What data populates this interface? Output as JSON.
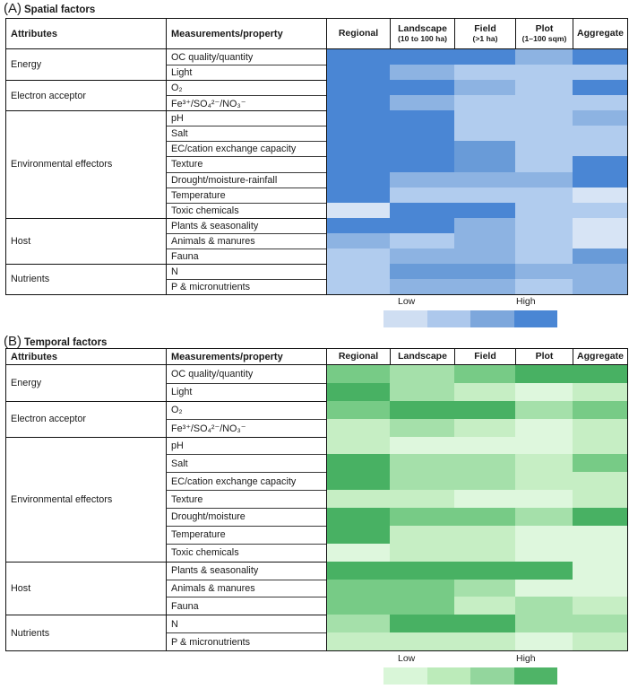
{
  "chart_data": [
    {
      "type": "heatmap",
      "panel_label": "(A)",
      "title": "Spatial factors",
      "col_group_headers": [
        "Attributes",
        "Measurements/property"
      ],
      "columns": [
        "Regional",
        "Landscape",
        "Field",
        "Plot",
        "Aggregate"
      ],
      "column_sublabels": [
        "",
        "(10 to 100 ha)",
        "(>1 ha)",
        "(1–100 sqm)",
        ""
      ],
      "row_groups": [
        {
          "attribute": "Energy",
          "span": 2
        },
        {
          "attribute": "Electron acceptor",
          "span": 2
        },
        {
          "attribute": "Environmental effectors",
          "span": 7
        },
        {
          "attribute": "Host",
          "span": 3
        },
        {
          "attribute": "Nutrients",
          "span": 2
        }
      ],
      "rows": [
        "OC quality/quantity",
        "Light",
        "O₂",
        "Fe³⁺/SO₄²⁻/NO₃⁻",
        "pH",
        "Salt",
        "EC/cation exchange capacity",
        "Texture",
        "Drought/moisture-rainfall",
        "Temperature",
        "Toxic chemicals",
        "Plants & seasonality",
        "Animals & manures",
        "Fauna",
        "N",
        "P & micronutrients"
      ],
      "values": [
        [
          5,
          5,
          5,
          3,
          5
        ],
        [
          5,
          3,
          2,
          2,
          2
        ],
        [
          5,
          5,
          3,
          2,
          5
        ],
        [
          5,
          3,
          2,
          2,
          2
        ],
        [
          5,
          5,
          2,
          2,
          3
        ],
        [
          5,
          5,
          2,
          2,
          2
        ],
        [
          5,
          5,
          4,
          2,
          2
        ],
        [
          5,
          5,
          4,
          2,
          5
        ],
        [
          5,
          3,
          3,
          3,
          5
        ],
        [
          5,
          2,
          2,
          2,
          1
        ],
        [
          1,
          5,
          5,
          2,
          2
        ],
        [
          5,
          5,
          3,
          2,
          1
        ],
        [
          3,
          2,
          3,
          2,
          1
        ],
        [
          2,
          3,
          3,
          2,
          4
        ],
        [
          2,
          4,
          4,
          3,
          3
        ],
        [
          2,
          3,
          3,
          2,
          3
        ]
      ],
      "value_scale": {
        "min": 1,
        "max": 5,
        "meaning": "relative level from Low to High"
      },
      "legend": {
        "low_label": "Low",
        "high_label": "High"
      },
      "palette": [
        "#d7e4f5",
        "#b1ccee",
        "#8db3e2",
        "#699bd8",
        "#4a86d4"
      ],
      "legend_swatches": [
        "#cfdef2",
        "#adc8ec",
        "#7da7dc",
        "#4a86d4"
      ]
    },
    {
      "type": "heatmap",
      "panel_label": "(B)",
      "title": "Temporal factors",
      "col_group_headers": [
        "Attributes",
        "Measurements/property"
      ],
      "columns": [
        "Regional",
        "Landscape",
        "Field",
        "Plot",
        "Aggregate"
      ],
      "column_sublabels": [
        "",
        "",
        "",
        "",
        ""
      ],
      "row_groups": [
        {
          "attribute": "Energy",
          "span": 2
        },
        {
          "attribute": "Electron acceptor",
          "span": 2
        },
        {
          "attribute": "Environmental effectors",
          "span": 7
        },
        {
          "attribute": "Host",
          "span": 3
        },
        {
          "attribute": "Nutrients",
          "span": 2
        }
      ],
      "rows": [
        "OC quality/quantity",
        "Light",
        "O₂",
        "Fe³⁺/SO₄²⁻/NO₃⁻",
        "pH",
        "Salt",
        "EC/cation exchange capacity",
        "Texture",
        "Drought/moisture",
        "Temperature",
        "Toxic chemicals",
        "Plants & seasonality",
        "Animals & manures",
        "Fauna",
        "N",
        "P & micronutrients"
      ],
      "values": [
        [
          4,
          3,
          4,
          5,
          5
        ],
        [
          5,
          3,
          2,
          1,
          2
        ],
        [
          4,
          5,
          5,
          3,
          4
        ],
        [
          2,
          3,
          2,
          1,
          2
        ],
        [
          2,
          1,
          1,
          1,
          2
        ],
        [
          5,
          3,
          3,
          2,
          4
        ],
        [
          5,
          3,
          3,
          2,
          2
        ],
        [
          2,
          2,
          1,
          1,
          2
        ],
        [
          5,
          4,
          4,
          3,
          5
        ],
        [
          5,
          2,
          2,
          1,
          1
        ],
        [
          1,
          2,
          2,
          1,
          1
        ],
        [
          5,
          5,
          5,
          5,
          1
        ],
        [
          4,
          4,
          3,
          1,
          1
        ],
        [
          4,
          4,
          2,
          3,
          2
        ],
        [
          3,
          5,
          5,
          3,
          3
        ],
        [
          2,
          2,
          2,
          1,
          2
        ]
      ],
      "value_scale": {
        "min": 1,
        "max": 5,
        "meaning": "relative level from Low to High"
      },
      "legend": {
        "low_label": "Low",
        "high_label": "High"
      },
      "palette": [
        "#def7dd",
        "#c6eec4",
        "#a5e0aa",
        "#77cb86",
        "#48b163"
      ],
      "legend_swatches": [
        "#d9f6d8",
        "#bcebba",
        "#93d69d",
        "#4fb467"
      ]
    }
  ]
}
